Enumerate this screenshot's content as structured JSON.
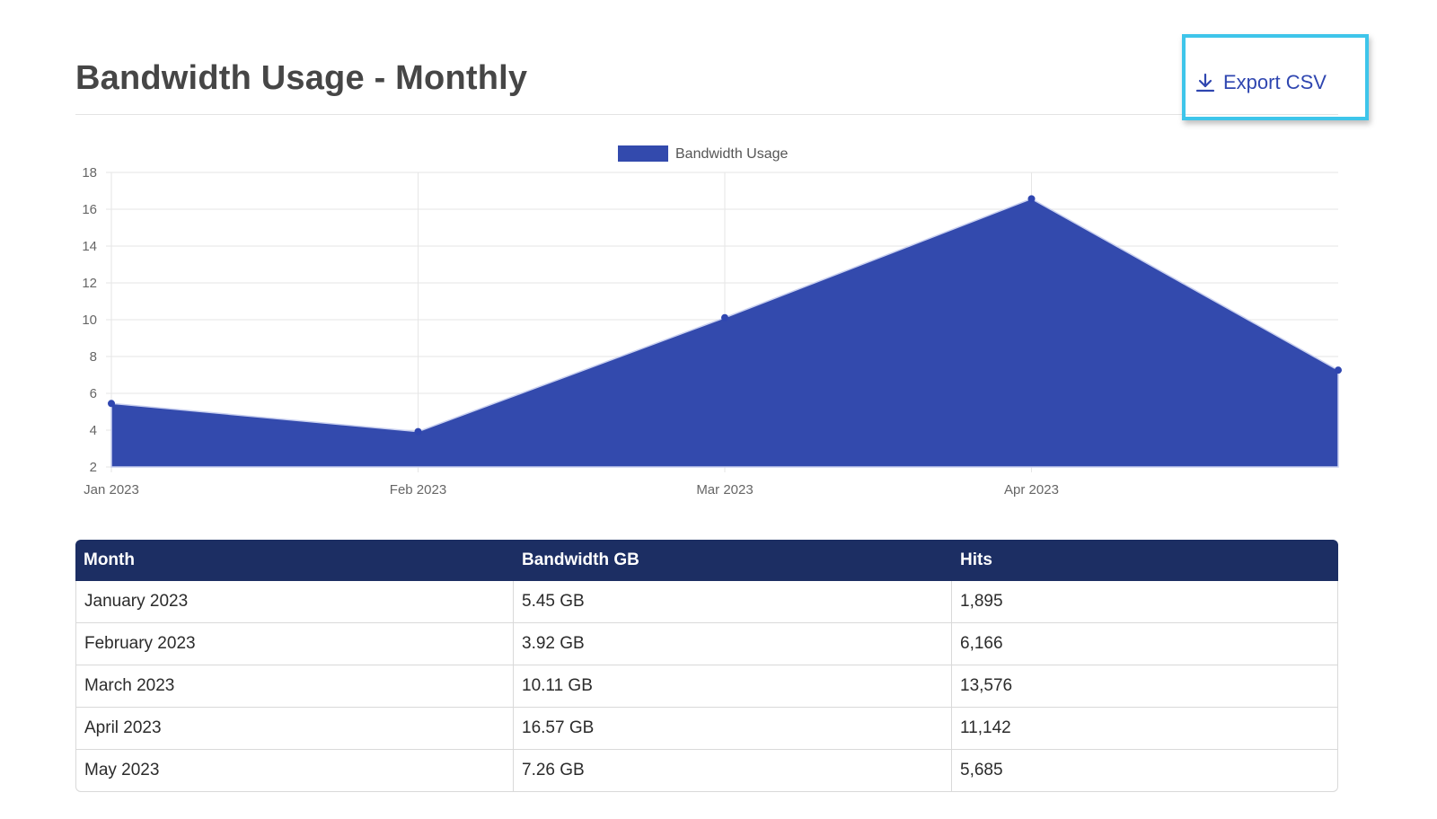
{
  "page": {
    "title": "Bandwidth Usage - Monthly"
  },
  "toolbar": {
    "export_label": "Export CSV",
    "export_icon": "download-icon"
  },
  "colors": {
    "accent": "#2f46b0",
    "area_fill": "#334aad",
    "highlight": "#3ec5ea",
    "table_header": "#1c2e63"
  },
  "chart_data": {
    "type": "area",
    "legend": {
      "label": "Bandwidth Usage",
      "position": "top-center"
    },
    "x_ticks": [
      "Jan 2023",
      "Feb 2023",
      "Mar 2023",
      "Apr 2023"
    ],
    "x": [
      "2023-01",
      "2023-02",
      "2023-03",
      "2023-04",
      "2023-05"
    ],
    "series": [
      {
        "name": "Bandwidth Usage",
        "values": [
          5.45,
          3.92,
          10.11,
          16.57,
          7.26
        ]
      }
    ],
    "y_ticks": [
      "2",
      "4",
      "6",
      "8",
      "10",
      "12",
      "14",
      "16",
      "18"
    ],
    "ylim": [
      2,
      18
    ],
    "grid": true
  },
  "table": {
    "headers": [
      "Month",
      "Bandwidth GB",
      "Hits"
    ],
    "rows": [
      [
        "January 2023",
        "5.45 GB",
        "1,895"
      ],
      [
        "February 2023",
        "3.92 GB",
        "6,166"
      ],
      [
        "March 2023",
        "10.11 GB",
        "13,576"
      ],
      [
        "April 2023",
        "16.57 GB",
        "11,142"
      ],
      [
        "May 2023",
        "7.26 GB",
        "5,685"
      ]
    ]
  }
}
